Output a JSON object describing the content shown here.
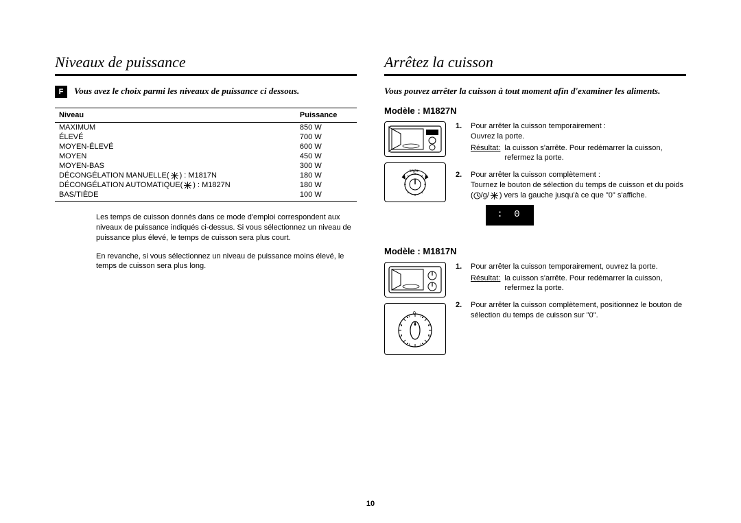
{
  "page_number": "10",
  "left": {
    "heading": "Niveaux de puissance",
    "lang_badge": "F",
    "intro": "Vous avez le choix parmi les niveaux de puissance ci dessous.",
    "table": {
      "headers": [
        "Niveau",
        "Puissance"
      ],
      "rows": [
        [
          "MAXIMUM",
          "850 W"
        ],
        [
          "ÉLEVÉ",
          "700 W"
        ],
        [
          "MOYEN-ÉLEVÉ",
          "600 W"
        ],
        [
          "MOYEN",
          "450 W"
        ],
        [
          "MOYEN-BAS",
          "300 W"
        ],
        [
          "DÉCONGÉLATION MANUELLE(    ) : M1817N",
          "180 W"
        ],
        [
          "DÉCONGÉLATION AUTOMATIQUE(    ) : M1827N",
          "180 W"
        ],
        [
          "BAS/TIÈDE",
          "100 W"
        ]
      ],
      "icon_rows": [
        5,
        6
      ]
    },
    "para1": "Les temps de cuisson donnés dans ce mode d'emploi correspondent aux niveaux de puissance indiqués ci-dessus. Si vous sélectionnez un niveau de puissance plus élevé, le temps de cuisson sera plus court.",
    "para2": "En revanche, si vous sélectionnez un niveau de puissance moins élevé, le temps de cuisson sera plus long."
  },
  "right": {
    "heading": "Arrêtez la cuisson",
    "intro": "Vous pouvez arrêter la cuisson à tout moment afin d'examiner les aliments.",
    "model_a": {
      "title": "Modèle : M1827N",
      "steps": [
        {
          "num": "1.",
          "text": "Pour arrêter la cuisson temporairement :\nOuvrez la porte.",
          "result_label": "Résultat:",
          "result_text": "la cuisson s'arrête. Pour redémarrer la cuisson, refermez la porte."
        },
        {
          "num": "2.",
          "text": "Pour arrêter la cuisson complètement :\nTournez le bouton de sélection du temps de cuisson et du poids (   /g/    ) vers la gauche jusqu'à ce que \"0\"  s'affiche.",
          "display": ": 0"
        }
      ]
    },
    "model_b": {
      "title": "Modèle : M1817N",
      "steps": [
        {
          "num": "1.",
          "text": "Pour arrêter la cuisson temporairement, ouvrez la porte.",
          "result_label": "Résultat:",
          "result_text": "la cuisson s'arrête. Pour redémarrer la cuisson, refermez la porte."
        },
        {
          "num": "2.",
          "text": "Pour arrêter la cuisson complètement, positionnez le bouton de sélection du temps de cuisson sur \"0\"."
        }
      ]
    }
  },
  "colors": {
    "text": "#000000",
    "bg": "#ffffff",
    "rule": "#000000"
  },
  "fonts": {
    "heading_family": "Times New Roman",
    "heading_size_pt": 17,
    "body_size_pt": 8.5
  }
}
